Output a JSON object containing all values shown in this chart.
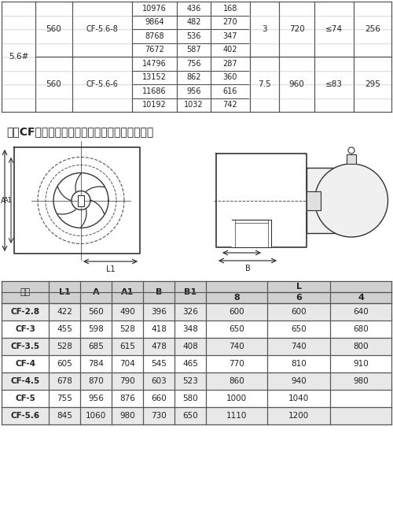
{
  "title": "四、CF系列离心式管道排烟风机外形及安装尺寸",
  "table_headers": [
    "机号",
    "L1",
    "A",
    "A1",
    "B",
    "B1",
    "8",
    "6",
    "4"
  ],
  "table_data": [
    [
      "CF-2.8",
      "422",
      "560",
      "490",
      "396",
      "326",
      "600",
      "600",
      "640"
    ],
    [
      "CF-3",
      "455",
      "598",
      "528",
      "418",
      "348",
      "650",
      "650",
      "680"
    ],
    [
      "CF-3.5",
      "528",
      "685",
      "615",
      "478",
      "408",
      "740",
      "740",
      "800"
    ],
    [
      "CF-4",
      "605",
      "784",
      "704",
      "545",
      "465",
      "770",
      "810",
      "910"
    ],
    [
      "CF-4.5",
      "678",
      "870",
      "790",
      "603",
      "523",
      "860",
      "940",
      "980"
    ],
    [
      "CF-5",
      "755",
      "956",
      "876",
      "660",
      "580",
      "1000",
      "1040",
      ""
    ],
    [
      "CF-5.6",
      "845",
      "1060",
      "980",
      "730",
      "650",
      "1110",
      "1200",
      ""
    ]
  ],
  "top_table_data": [
    [
      "5.6#",
      "560",
      "CF-5.6-8",
      "10976",
      "436",
      "168",
      "3",
      "720",
      "≤74",
      "256"
    ],
    [
      "",
      "",
      "",
      "9864",
      "482",
      "270",
      "",
      "",
      "",
      ""
    ],
    [
      "",
      "",
      "",
      "8768",
      "536",
      "347",
      "",
      "",
      "",
      ""
    ],
    [
      "",
      "",
      "",
      "7672",
      "587",
      "402",
      "",
      "",
      "",
      ""
    ],
    [
      "",
      "560",
      "CF-5.6-6",
      "14796",
      "756",
      "287",
      "7.5",
      "960",
      "≤83",
      "295"
    ],
    [
      "",
      "",
      "",
      "13152",
      "862",
      "360",
      "",
      "",
      "",
      ""
    ],
    [
      "",
      "",
      "",
      "11686",
      "956",
      "616",
      "",
      "",
      "",
      ""
    ],
    [
      "",
      "",
      "",
      "10192",
      "1032",
      "742",
      "",
      "",
      "",
      ""
    ]
  ],
  "bg_color_header": "#d0d0d0",
  "bg_color_data_odd": "#e8e8e8",
  "bg_color_data_even": "#f8f8f8",
  "border_color": "#555555",
  "text_color": "#222222",
  "diagram_line_color": "#333333",
  "diagram_dash_color": "#555555"
}
